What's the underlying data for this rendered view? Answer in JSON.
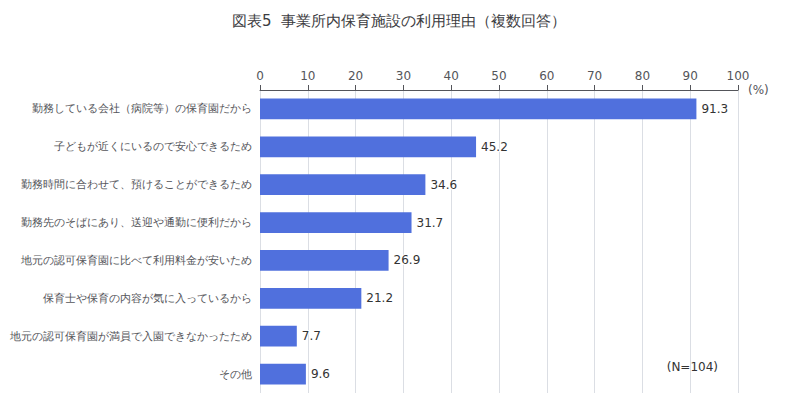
{
  "chart_data": {
    "type": "bar",
    "orientation": "horizontal",
    "title": "図表5  事業所内保育施設の利用理由（複数回答）",
    "categories": [
      "勤務している会社（病院等）の保育園だから",
      "子どもが近くにいるので安心できるため",
      "勤務時間に合わせて、預けることができるため",
      "勤務先のそばにあり、送迎や通勤に便利だから",
      "地元の認可保育園に比べて利用料金が安いため",
      "保育士や保育の内容が気に入っているから",
      "地元の認可保育園が満員で入園できなかったため",
      "その他"
    ],
    "values": [
      91.3,
      45.2,
      34.6,
      31.7,
      26.9,
      21.2,
      7.7,
      9.6
    ],
    "xlabel": "(%)",
    "annotations": [
      "(N=104)"
    ],
    "xlim": [
      0,
      100
    ],
    "xticks": [
      0,
      10,
      20,
      30,
      40,
      50,
      60,
      70,
      80,
      90,
      100
    ],
    "grid": true,
    "data_labels": true
  }
}
